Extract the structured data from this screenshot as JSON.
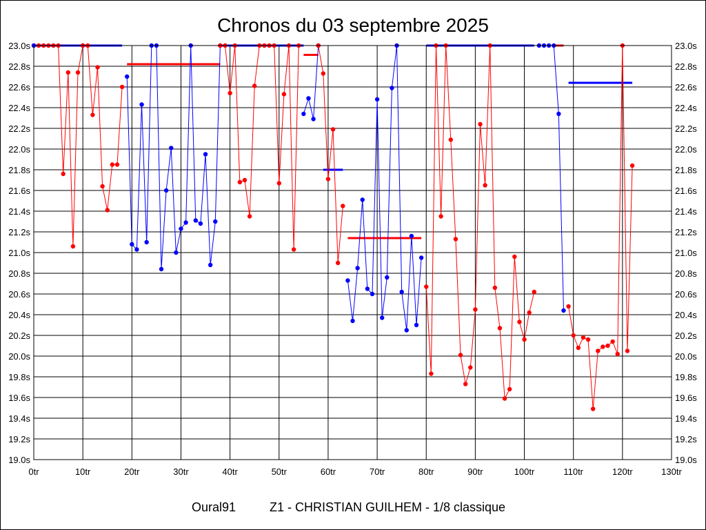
{
  "chart_data": {
    "type": "line",
    "title": "Chronos du 03 septembre 2025",
    "footer_left": "Oural91",
    "footer_right": "Z1 - CHRISTIAN GUILHEM - 1/8 classique",
    "xlim": [
      0,
      130
    ],
    "ylim": [
      19.0,
      23.0
    ],
    "x_ticks": [
      0,
      10,
      20,
      30,
      40,
      50,
      60,
      70,
      80,
      90,
      100,
      110,
      120,
      130
    ],
    "x_tick_labels": [
      "0tr",
      "10tr",
      "20tr",
      "30tr",
      "40tr",
      "50tr",
      "60tr",
      "70tr",
      "80tr",
      "90tr",
      "100tr",
      "110tr",
      "120tr",
      "130tr"
    ],
    "y_ticks": [
      19.0,
      19.2,
      19.4,
      19.6,
      19.8,
      20.0,
      20.2,
      20.4,
      20.6,
      20.8,
      21.0,
      21.2,
      21.4,
      21.6,
      21.8,
      22.0,
      22.2,
      22.4,
      22.6,
      22.8,
      23.0
    ],
    "y_tick_labels": [
      "19.0s",
      "19.2s",
      "19.4s",
      "19.6s",
      "19.8s",
      "20.0s",
      "20.2s",
      "20.4s",
      "20.6s",
      "20.8s",
      "21.0s",
      "21.2s",
      "21.4s",
      "21.6s",
      "21.8s",
      "22.0s",
      "22.2s",
      "22.4s",
      "22.6s",
      "22.8s",
      "23.0s"
    ],
    "grid": true,
    "colors": {
      "red": "#ff0000",
      "blue": "#0000ff"
    },
    "series": [
      {
        "color": "red",
        "points": [
          [
            0,
            23.0
          ],
          [
            1,
            23.0
          ],
          [
            2,
            23.0
          ],
          [
            3,
            23.0
          ],
          [
            4,
            23.0
          ],
          [
            5,
            23.0
          ],
          [
            6,
            21.76
          ],
          [
            7,
            22.74
          ],
          [
            8,
            21.06
          ],
          [
            9,
            22.74
          ],
          [
            10,
            23.0
          ]
        ]
      },
      {
        "color": "blue",
        "points": [
          [
            10,
            23.0
          ],
          [
            0,
            23.0
          ]
        ]
      },
      {
        "color": "red",
        "points": [
          [
            10,
            23.0
          ],
          [
            11,
            23.0
          ],
          [
            12,
            22.33
          ],
          [
            13,
            22.79
          ],
          [
            14,
            21.64
          ],
          [
            15,
            21.41
          ],
          [
            16,
            21.85
          ],
          [
            17,
            21.85
          ],
          [
            18,
            22.6
          ]
        ]
      },
      {
        "color": "blue",
        "points": [
          [
            19,
            22.7
          ],
          [
            20,
            21.08
          ],
          [
            21,
            21.03
          ],
          [
            22,
            22.43
          ],
          [
            23,
            21.1
          ],
          [
            24,
            23.0
          ],
          [
            25,
            23.0
          ],
          [
            26,
            20.84
          ],
          [
            27,
            21.6
          ],
          [
            28,
            22.01
          ],
          [
            29,
            21.0
          ],
          [
            30,
            21.23
          ],
          [
            31,
            21.29
          ],
          [
            32,
            23.0
          ],
          [
            33,
            21.31
          ],
          [
            34,
            21.28
          ],
          [
            35,
            21.95
          ],
          [
            36,
            20.88
          ],
          [
            37,
            21.3
          ],
          [
            38,
            23.0
          ]
        ]
      },
      {
        "color": "red",
        "points": [
          [
            38,
            23.0
          ],
          [
            39,
            23.0
          ],
          [
            40,
            22.54
          ],
          [
            41,
            23.0
          ],
          [
            42,
            21.68
          ],
          [
            43,
            21.7
          ],
          [
            44,
            21.35
          ],
          [
            45,
            22.61
          ],
          [
            46,
            23.0
          ],
          [
            47,
            23.0
          ],
          [
            48,
            23.0
          ],
          [
            49,
            23.0
          ],
          [
            50,
            21.67
          ],
          [
            51,
            22.53
          ],
          [
            52,
            23.0
          ],
          [
            53,
            21.03
          ],
          [
            54,
            23.0
          ]
        ]
      },
      {
        "color": "blue",
        "points": [
          [
            55,
            22.34
          ],
          [
            56,
            22.49
          ],
          [
            57,
            22.29
          ],
          [
            58,
            23.0
          ]
        ]
      },
      {
        "color": "red",
        "points": [
          [
            58,
            23.0
          ],
          [
            59,
            22.73
          ],
          [
            60,
            21.71
          ],
          [
            61,
            22.19
          ],
          [
            62,
            20.9
          ],
          [
            63,
            21.45
          ]
        ]
      },
      {
        "color": "blue",
        "points": [
          [
            64,
            20.73
          ],
          [
            65,
            20.34
          ],
          [
            66,
            20.85
          ],
          [
            67,
            21.51
          ],
          [
            68,
            20.65
          ],
          [
            69,
            20.6
          ],
          [
            70,
            22.48
          ],
          [
            71,
            20.37
          ],
          [
            72,
            20.76
          ],
          [
            73,
            22.59
          ],
          [
            74,
            23.0
          ],
          [
            75,
            20.62
          ],
          [
            76,
            20.25
          ],
          [
            77,
            21.16
          ],
          [
            78,
            20.3
          ],
          [
            79,
            20.95
          ]
        ]
      },
      {
        "color": "red",
        "points": [
          [
            80,
            20.67
          ],
          [
            81,
            19.83
          ],
          [
            82,
            23.0
          ],
          [
            83,
            21.35
          ],
          [
            84,
            23.0
          ],
          [
            85,
            22.09
          ],
          [
            86,
            21.13
          ],
          [
            87,
            20.01
          ],
          [
            88,
            19.73
          ],
          [
            89,
            19.89
          ],
          [
            90,
            20.45
          ],
          [
            91,
            22.24
          ],
          [
            92,
            21.65
          ],
          [
            93,
            23.0
          ],
          [
            94,
            20.66
          ],
          [
            95,
            20.27
          ],
          [
            96,
            19.59
          ],
          [
            97,
            19.68
          ],
          [
            98,
            20.96
          ],
          [
            99,
            20.33
          ],
          [
            100,
            20.16
          ],
          [
            101,
            20.42
          ],
          [
            102,
            20.62
          ]
        ]
      },
      {
        "color": "blue",
        "points": [
          [
            103,
            23.0
          ],
          [
            104,
            23.0
          ],
          [
            105,
            23.0
          ],
          [
            106,
            23.0
          ],
          [
            107,
            22.34
          ],
          [
            108,
            20.44
          ]
        ]
      },
      {
        "color": "red",
        "points": [
          [
            109,
            20.48
          ],
          [
            110,
            20.2
          ],
          [
            111,
            20.08
          ],
          [
            112,
            20.18
          ],
          [
            113,
            20.16
          ],
          [
            114,
            19.49
          ],
          [
            115,
            20.05
          ],
          [
            116,
            20.09
          ],
          [
            117,
            20.1
          ],
          [
            118,
            20.14
          ],
          [
            119,
            20.02
          ],
          [
            120,
            23.0
          ],
          [
            121,
            20.05
          ],
          [
            122,
            21.84
          ]
        ]
      }
    ],
    "average_lines": [
      {
        "color": "blue",
        "x": [
          0,
          18
        ],
        "y": 23.0
      },
      {
        "color": "red",
        "x": [
          19,
          38
        ],
        "y": 22.82
      },
      {
        "color": "blue",
        "x": [
          38,
          55
        ],
        "y": 23.0
      },
      {
        "color": "red",
        "x": [
          55,
          58
        ],
        "y": 22.91
      },
      {
        "color": "blue",
        "x": [
          59,
          63
        ],
        "y": 21.8
      },
      {
        "color": "red",
        "x": [
          64,
          79
        ],
        "y": 21.14
      },
      {
        "color": "blue",
        "x": [
          80,
          102
        ],
        "y": 23.0
      },
      {
        "color": "red",
        "x": [
          106,
          108
        ],
        "y": 23.0
      },
      {
        "color": "blue",
        "x": [
          109,
          122
        ],
        "y": 22.64
      }
    ]
  }
}
